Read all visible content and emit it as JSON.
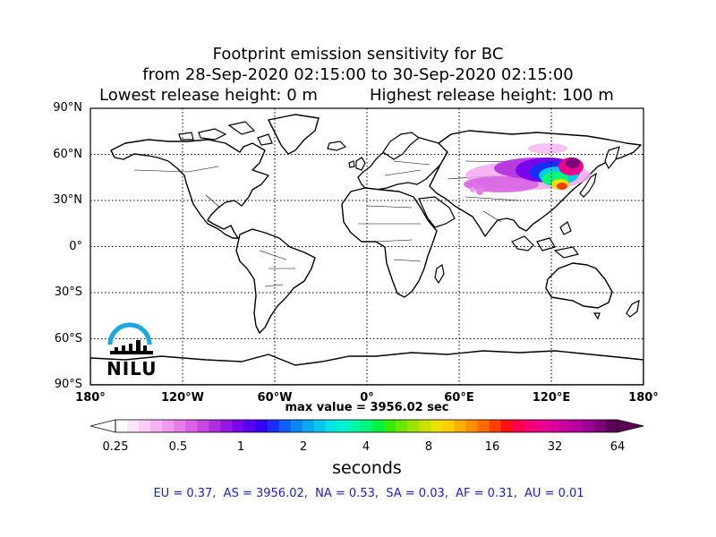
{
  "title": {
    "line1": "Footprint emission sensitivity for BC",
    "line2": "from 28-Sep-2020 02:15:00 to 30-Sep-2020 02:15:00",
    "lowest": "Lowest release height: 0 m",
    "highest": "Highest release height: 100 m"
  },
  "map": {
    "lat_labels": [
      "90°N",
      "60°N",
      "30°N",
      "0°",
      "30°S",
      "60°S",
      "90°S"
    ],
    "lon_labels": [
      "180°",
      "120°W",
      "60°W",
      "0°",
      "60°E",
      "120°E",
      "180°"
    ],
    "grid": "dotted",
    "land_color": "#ffffff",
    "outline_color": "#000000"
  },
  "max_value": "max value = 3956.02 sec",
  "colorbar": {
    "tick_labels": [
      "0.25",
      "0.5",
      "1",
      "2",
      "4",
      "8",
      "16",
      "32",
      "64"
    ],
    "units": "seconds",
    "colors": [
      "#ffffff",
      "#fde6fc",
      "#fbcdf8",
      "#f6b3f3",
      "#f09aee",
      "#e67ee8",
      "#d963e4",
      "#c848e0",
      "#b12de0",
      "#9617e4",
      "#7905ea",
      "#5a00f0",
      "#3300f4",
      "#1a2cf8",
      "#0f5ff6",
      "#0b86f4",
      "#0aa8f0",
      "#08c8ec",
      "#06e6e6",
      "#00f3cc",
      "#00f7a8",
      "#00f77c",
      "#00f244",
      "#33ee00",
      "#6ae800",
      "#9de400",
      "#c8e000",
      "#ece000",
      "#ffd000",
      "#ffb000",
      "#ff8f00",
      "#ff6a00",
      "#ff3f00",
      "#ff1010",
      "#ff0050",
      "#f40074",
      "#ea008c",
      "#dc0098",
      "#c8009e",
      "#b4009e",
      "#9c0094",
      "#7e0078",
      "#5c0058"
    ]
  },
  "regions": "EU = 0.37,  AS = 3956.02,  NA = 0.53,  SA = 0.03,  AF = 0.31,  AU = 0.01",
  "logo": {
    "text": "NILU",
    "arc_color": "#1aa7e4"
  }
}
